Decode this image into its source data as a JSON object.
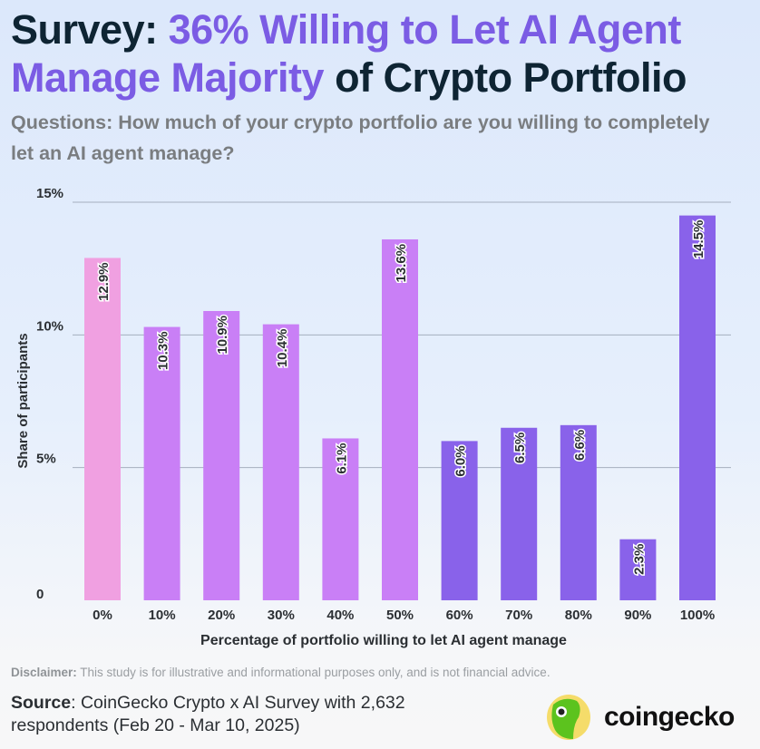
{
  "title": {
    "part1": "Survey: ",
    "highlight1": "36% Willing to Let AI Agent",
    "highlight2": "Manage Majority",
    "part2": " of Crypto Portfolio"
  },
  "subtitle": "Questions: How much of your crypto portfolio are you willing to completely let an AI agent manage?",
  "chart_data": {
    "type": "bar",
    "categories": [
      "0%",
      "10%",
      "20%",
      "30%",
      "40%",
      "50%",
      "60%",
      "70%",
      "80%",
      "90%",
      "100%"
    ],
    "values": [
      12.9,
      10.3,
      10.9,
      10.4,
      6.1,
      13.6,
      6.0,
      6.5,
      6.6,
      2.3,
      14.5
    ],
    "data_labels": [
      "12.9%",
      "10.3%",
      "10.9%",
      "10.4%",
      "6.1%",
      "13.6%",
      "6.0%",
      "6.5%",
      "6.6%",
      "2.3%",
      "14.5%"
    ],
    "xlabel": "Percentage of portfolio willing to let AI agent manage",
    "ylabel": "Share of participants",
    "ylim": [
      0,
      15
    ],
    "yticks": [
      0,
      5,
      10,
      15
    ],
    "ytick_labels": [
      "0",
      "5%",
      "10%",
      "15%"
    ],
    "grid": true,
    "colors": [
      "#f0a0e1",
      "#c97ff6",
      "#c97ff6",
      "#c97ff6",
      "#c97ff6",
      "#c97ff6",
      "#8962ea",
      "#8962ea",
      "#8962ea",
      "#8962ea",
      "#8962ea"
    ]
  },
  "footer": {
    "disclaimer_label": "Disclaimer:",
    "disclaimer_text": " This study is for illustrative and informational purposes only, and is not financial advice.",
    "source_label": "Source",
    "source_text": ": CoinGecko Crypto x AI Survey with 2,632 respondents (Feb 20 - Mar 10, 2025)",
    "logo_text": "coingecko"
  }
}
